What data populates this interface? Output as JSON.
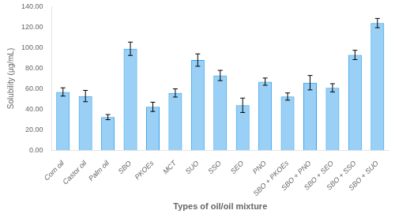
{
  "chart_data": {
    "type": "bar",
    "categories": [
      "Corn oil",
      "Castor oil",
      "Palm oil",
      "SBO",
      "PKOEs",
      "MCT",
      "SUO",
      "SSO",
      "SEO",
      "PNO",
      "SBO + PKOEs",
      "SBO + PNO",
      "SBO + SEO",
      "SBO + SSO",
      "SBO + SUO"
    ],
    "values": [
      57.0,
      53.0,
      32.5,
      99.0,
      42.5,
      56.0,
      88.0,
      73.0,
      44.0,
      67.0,
      52.5,
      66.0,
      61.0,
      93.0,
      124.0
    ],
    "errors": [
      4.0,
      5.5,
      2.5,
      6.5,
      4.5,
      4.0,
      6.0,
      5.0,
      7.0,
      3.5,
      3.5,
      7.0,
      4.0,
      4.5,
      4.5
    ],
    "xlabel": "Types of oil/oil mixture",
    "ylabel": "Solubility (μg/mL)",
    "ylim": [
      0,
      140
    ],
    "yticks": [
      {
        "value": 0,
        "label": "0.00"
      },
      {
        "value": 20,
        "label": "20.00"
      },
      {
        "value": 40,
        "label": "40.00"
      },
      {
        "value": 60,
        "label": "60.00"
      },
      {
        "value": 80,
        "label": "80.00"
      },
      {
        "value": 100,
        "label": "100.00"
      },
      {
        "value": 120,
        "label": "120.00"
      },
      {
        "value": 140,
        "label": "140.00"
      }
    ],
    "grid": false
  }
}
